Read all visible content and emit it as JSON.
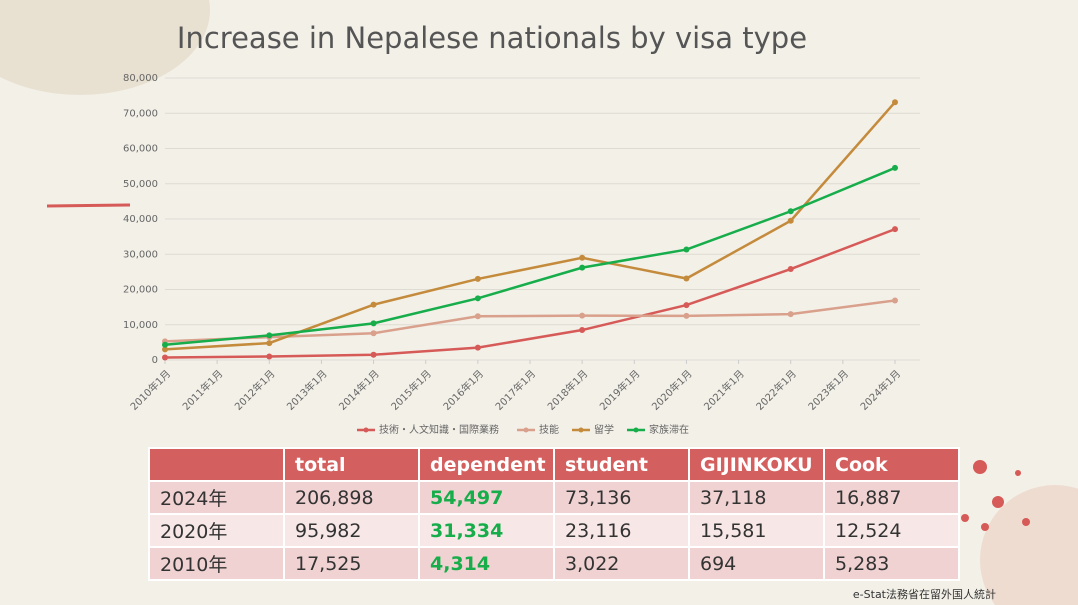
{
  "chart_data": {
    "type": "line",
    "title": "Increase in Nepalese nationals by visa type",
    "x": [
      2010,
      2012,
      2014,
      2016,
      2018,
      2020,
      2022,
      2024
    ],
    "xlim": [
      2010,
      2024
    ],
    "xticks": [
      {
        "value": 2010,
        "label": "2010年1月"
      },
      {
        "value": 2011,
        "label": "2011年1月"
      },
      {
        "value": 2012,
        "label": "2012年1月"
      },
      {
        "value": 2013,
        "label": "2013年1月"
      },
      {
        "value": 2014,
        "label": "2014年1月"
      },
      {
        "value": 2015,
        "label": "2015年1月"
      },
      {
        "value": 2016,
        "label": "2016年1月"
      },
      {
        "value": 2017,
        "label": "2017年1月"
      },
      {
        "value": 2018,
        "label": "2018年1月"
      },
      {
        "value": 2019,
        "label": "2019年1月"
      },
      {
        "value": 2020,
        "label": "2020年1月"
      },
      {
        "value": 2021,
        "label": "2021年1月"
      },
      {
        "value": 2022,
        "label": "2022年1月"
      },
      {
        "value": 2023,
        "label": "2023年1月"
      },
      {
        "value": 2024,
        "label": "2024年1月"
      }
    ],
    "ylim": [
      0,
      80000
    ],
    "yticks": [
      0,
      {
        "value": 10000,
        "label": "10,000"
      },
      {
        "value": 20000,
        "label": "20,000"
      },
      {
        "value": 30000,
        "label": "30,000"
      },
      {
        "value": 40000,
        "label": "40,000"
      },
      {
        "value": 50000,
        "label": "50,000"
      },
      {
        "value": 60000,
        "label": "60,000"
      },
      {
        "value": 70000,
        "label": "70,000"
      },
      {
        "value": 80000,
        "label": "80,000"
      }
    ],
    "grid": true,
    "legend": "bottom",
    "series": [
      {
        "name": "技術・人文知識・国際業務",
        "color": "#d65a57",
        "values": [
          694,
          1000,
          1500,
          3500,
          8500,
          15581,
          25800,
          37118
        ]
      },
      {
        "name": "技能",
        "color": "#d9a08c",
        "values": [
          5283,
          6500,
          7600,
          12400,
          12600,
          12524,
          13000,
          16887
        ]
      },
      {
        "name": "留学",
        "color": "#c48b3c",
        "values": [
          3022,
          4800,
          15700,
          23000,
          29000,
          23116,
          39500,
          73136
        ]
      },
      {
        "name": "家族滞在",
        "color": "#16ad4a",
        "values": [
          4314,
          7000,
          10400,
          17500,
          26200,
          31334,
          42200,
          54497
        ]
      }
    ]
  },
  "table": {
    "columns": [
      "total",
      "dependent",
      "student",
      "GIJINKOKU",
      "Cook"
    ],
    "rows": [
      {
        "label": "2024年",
        "cells": [
          "206,898",
          "54,497",
          "73,136",
          "37,118",
          "16,887"
        ]
      },
      {
        "label": "2020年",
        "cells": [
          "95,982",
          "31,334",
          "23,116",
          "15,581",
          "12,524"
        ]
      },
      {
        "label": "2010年",
        "cells": [
          "17,525",
          "4,314",
          "3,022",
          "694",
          "5,283"
        ]
      }
    ]
  },
  "source": "e-Stat法務省在留外国人統計"
}
